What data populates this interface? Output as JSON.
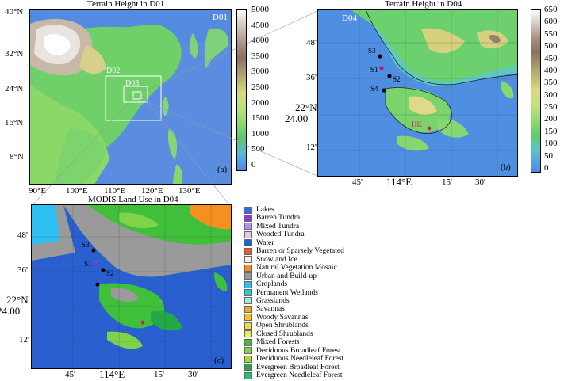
{
  "panel_a": {
    "title": "Terrain Height in D01",
    "domain_label": "D01",
    "nested_domains": [
      "D02",
      "D03"
    ],
    "panel_label": "(a)",
    "lat_ticks": [
      "40°N",
      "32°N",
      "24°N",
      "16°N",
      "8°N"
    ],
    "lon_ticks": [
      "90°E",
      "100°E",
      "110°E",
      "120°E",
      "130°E"
    ],
    "colorbar_ticks": [
      "5000",
      "4500",
      "4000",
      "3500",
      "3000",
      "2500",
      "2000",
      "1500",
      "1000",
      "500",
      "0"
    ]
  },
  "panel_b": {
    "title": "Terrain Height in D04",
    "domain_label": "D04",
    "panel_label": "(b)",
    "lat_ticks": [
      "48'",
      "36'",
      "22°N 24.00'",
      "12'"
    ],
    "lat_main_line1": "22°N",
    "lat_main_line2": "24.00'",
    "lon_ticks": [
      "45'",
      "114°E",
      "15'",
      "30'"
    ],
    "stations": [
      "S3",
      "S1",
      "S2",
      "S4",
      "HK"
    ],
    "colorbar_ticks": [
      "650",
      "600",
      "550",
      "500",
      "450",
      "400",
      "350",
      "300",
      "250",
      "200",
      "150",
      "100",
      "50",
      "0"
    ]
  },
  "panel_c": {
    "title": "MODIS Land Use in D04",
    "panel_label": "(c)",
    "lat_ticks": [
      "48'",
      "36'",
      "12'"
    ],
    "lat_main_line1": "22°N",
    "lat_main_line2": "24.00'",
    "lon_ticks": [
      "45'",
      "114°E",
      "15'",
      "30'"
    ],
    "stations": [
      "S3",
      "S1",
      "S2"
    ]
  },
  "legend": [
    {
      "label": "Lakes",
      "color": "#2f6fe8"
    },
    {
      "label": "Barren Tundra",
      "color": "#8a3be0"
    },
    {
      "label": "Mixed Tundra",
      "color": "#b993ea"
    },
    {
      "label": "Wooded Tundra",
      "color": "#e3c8f0"
    },
    {
      "label": "Water",
      "color": "#1f5fd6"
    },
    {
      "label": "Barren or Sparsely Vegetated",
      "color": "#f05a28"
    },
    {
      "label": "Snow and Ice",
      "color": "#f4efe9"
    },
    {
      "label": "Natural Vegetation Mosaic",
      "color": "#f39020"
    },
    {
      "label": "Urban and Build-up",
      "color": "#9a9a9a"
    },
    {
      "label": "Croplands",
      "color": "#2ec0f0"
    },
    {
      "label": "Permanent Wetlands",
      "color": "#1fd3d0"
    },
    {
      "label": "Grasslands",
      "color": "#9fe7e0"
    },
    {
      "label": "Savannas",
      "color": "#f6a61c"
    },
    {
      "label": "Woody Savannas",
      "color": "#f7c12a"
    },
    {
      "label": "Open Shrublands",
      "color": "#f5dc3a"
    },
    {
      "label": "Closed Shrublands",
      "color": "#e8ec5a"
    },
    {
      "label": "Mixed Forests",
      "color": "#3fbf3a"
    },
    {
      "label": "Deciduous Broadleaf Forest",
      "color": "#7fd34a"
    },
    {
      "label": "Deciduous Needleleaf Forest",
      "color": "#a8d83a"
    },
    {
      "label": "Evergreen Broadleaf Forest",
      "color": "#22a844"
    },
    {
      "label": "Evergreen Needleleaf Forest",
      "color": "#25c07a"
    }
  ]
}
